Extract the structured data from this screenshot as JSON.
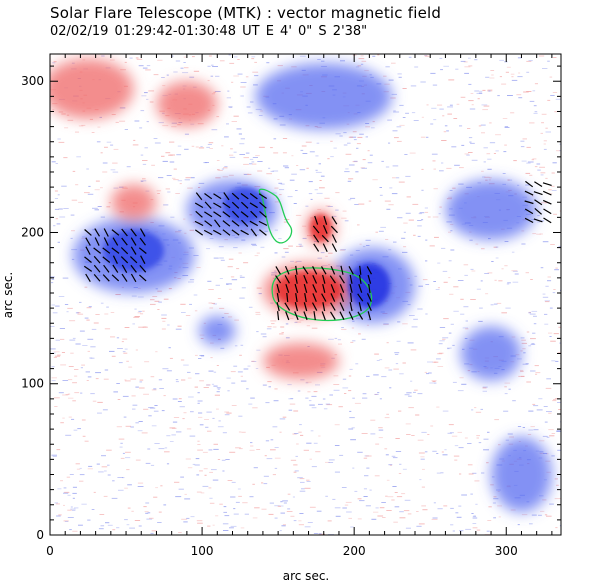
{
  "header": {
    "title": "Solar Flare Telescope (MTK) : vector magnetic field",
    "subtitle": "02/02/19  01:29:42-01:30:48 UT     E 4' 0\"    S 2'38\""
  },
  "chart_data": {
    "type": "heatmap",
    "xlabel": "arc sec.",
    "ylabel": "arc sec.",
    "xlim": [
      0,
      336
    ],
    "ylim": [
      0,
      318
    ],
    "xticks": [
      0,
      100,
      200,
      300
    ],
    "yticks": [
      0,
      100,
      200,
      300
    ],
    "colors": {
      "positive": "#f07070",
      "negative": "#5a6cf0",
      "background": "#ffffff",
      "contour": "#22cc55",
      "vector": "#000000"
    },
    "positive_regions": [
      {
        "x": 25,
        "y": 295,
        "rx": 30,
        "ry": 20
      },
      {
        "x": 90,
        "y": 285,
        "rx": 20,
        "ry": 15
      },
      {
        "x": 170,
        "y": 162,
        "rx": 30,
        "ry": 18
      },
      {
        "x": 178,
        "y": 203,
        "rx": 10,
        "ry": 12
      },
      {
        "x": 165,
        "y": 115,
        "rx": 25,
        "ry": 12
      },
      {
        "x": 55,
        "y": 220,
        "rx": 15,
        "ry": 12
      }
    ],
    "negative_regions": [
      {
        "x": 180,
        "y": 290,
        "rx": 45,
        "ry": 22
      },
      {
        "x": 55,
        "y": 185,
        "rx": 40,
        "ry": 25
      },
      {
        "x": 120,
        "y": 215,
        "rx": 30,
        "ry": 20
      },
      {
        "x": 212,
        "y": 165,
        "rx": 28,
        "ry": 25
      },
      {
        "x": 110,
        "y": 135,
        "rx": 12,
        "ry": 10
      },
      {
        "x": 290,
        "y": 215,
        "rx": 30,
        "ry": 20
      },
      {
        "x": 290,
        "y": 120,
        "rx": 20,
        "ry": 18
      },
      {
        "x": 310,
        "y": 40,
        "rx": 20,
        "ry": 25
      }
    ]
  }
}
